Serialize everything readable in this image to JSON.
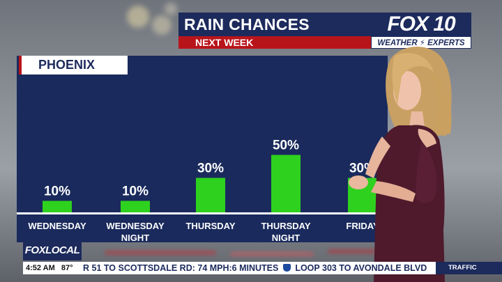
{
  "header": {
    "title": "RAIN CHANCES",
    "subtitle": "NEXT WEEK",
    "brand": "FOX 10",
    "brand_sub": "WEATHER ⚡ EXPERTS"
  },
  "chart_data": {
    "type": "bar",
    "title": "RAIN CHANCES",
    "subtitle": "NEXT WEEK",
    "location": "PHOENIX",
    "categories": [
      [
        "WEDNESDAY"
      ],
      [
        "WEDNESDAY",
        "NIGHT"
      ],
      [
        "THURSDAY"
      ],
      [
        "THURSDAY",
        "NIGHT"
      ],
      [
        "FRIDAY"
      ]
    ],
    "values": [
      10,
      10,
      30,
      50,
      30
    ],
    "value_labels": [
      "10%",
      "10%",
      "30%",
      "50%",
      "30%"
    ],
    "unit": "%",
    "ylim": [
      0,
      100
    ],
    "grid": false,
    "bar_color": "#2fd11f"
  },
  "footer": {
    "brand": "FOXLOCAL",
    "time": "4:52 AM",
    "temp": "87°",
    "ticker_before": "R 51 TO SCOTTSDALE RD: 74 MPH:6 MINUTES",
    "ticker_after": "LOOP 303 TO AVONDALE BLVD",
    "ticker_tag": "TRAFFIC"
  },
  "colors": {
    "navy": "#1c2a5c",
    "red": "#b8151b",
    "bar": "#2fd11f"
  }
}
